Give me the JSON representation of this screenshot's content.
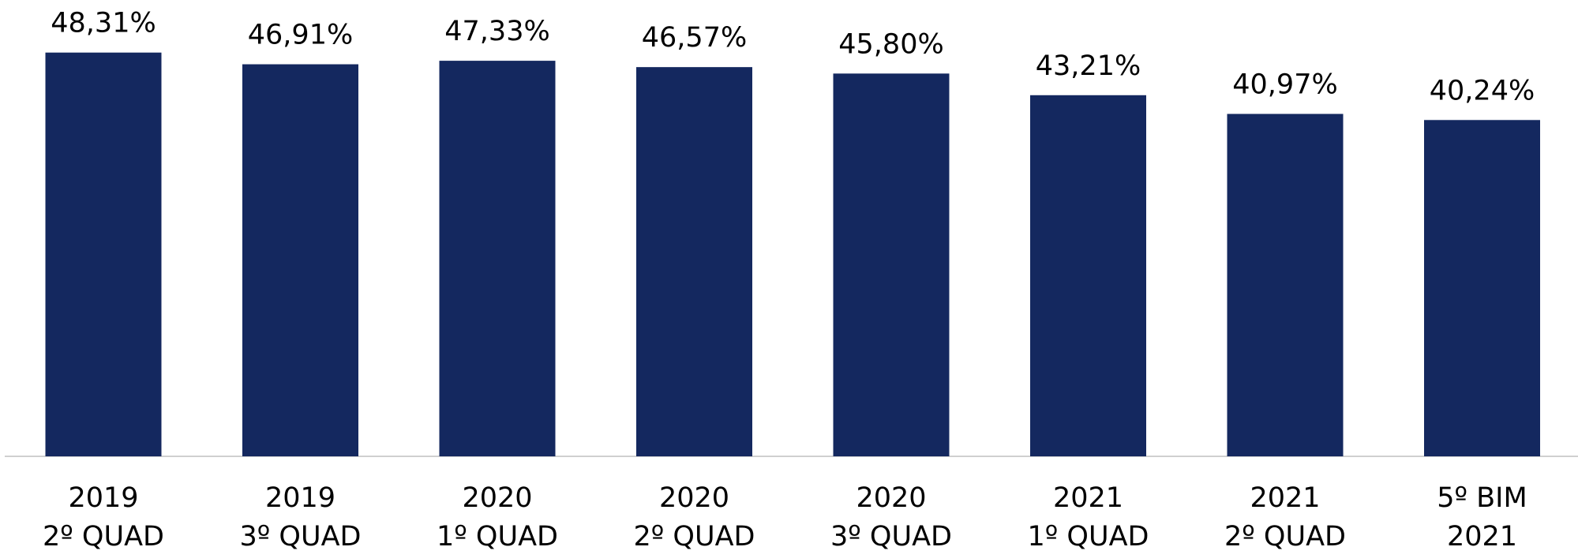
{
  "chart_data": {
    "type": "bar",
    "categories": [
      [
        "2019",
        "2º QUAD"
      ],
      [
        "2019",
        "3º QUAD"
      ],
      [
        "2020",
        "1º QUAD"
      ],
      [
        "2020",
        "2º QUAD"
      ],
      [
        "2020",
        "3º QUAD"
      ],
      [
        "2021",
        "1º QUAD"
      ],
      [
        "2021",
        "2º QUAD"
      ],
      [
        "5º BIM",
        "2021"
      ]
    ],
    "values": [
      48.31,
      46.91,
      47.33,
      46.57,
      45.8,
      43.21,
      40.97,
      40.24
    ],
    "value_labels": [
      "48,31%",
      "46,91%",
      "47,33%",
      "46,57%",
      "45,80%",
      "43,21%",
      "40,97%",
      "40,24%"
    ],
    "color": "#14285f",
    "ylim": [
      0,
      54.6
    ]
  }
}
